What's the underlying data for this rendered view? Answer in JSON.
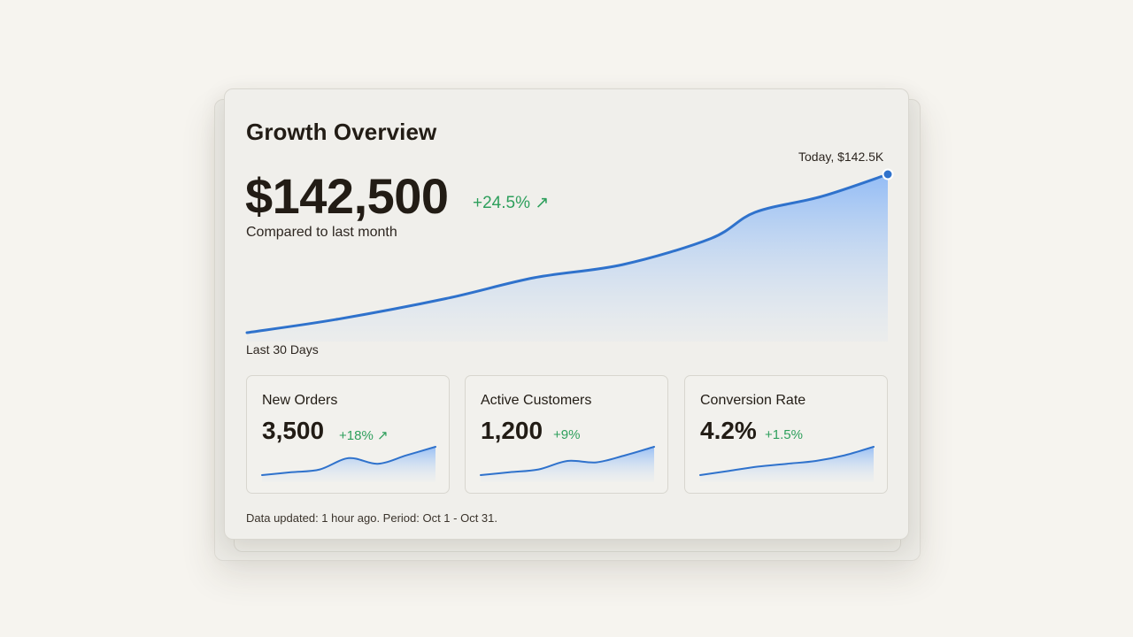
{
  "colors": {
    "background": "#f6f4ef",
    "card": "#f0efeb",
    "line": "#2f72cc",
    "area_fill": "#9fc4f7",
    "positive": "#2e9f5c",
    "text": "#221c15"
  },
  "overview": {
    "title": "Growth Overview",
    "value": "$142,500",
    "delta": "+24.5% ↗",
    "compare_label": "Compared to last month",
    "range_label": "Last 30 Days",
    "today_label": "Today, $142.5K"
  },
  "chart_data": {
    "type": "area",
    "x": [
      1,
      5,
      10,
      14,
      18,
      22,
      24,
      27,
      30
    ],
    "y": [
      82,
      87,
      95,
      103,
      108,
      118,
      128,
      134,
      142.5
    ],
    "xlabel": "",
    "ylabel": "",
    "grid": false,
    "highlight": {
      "label": "Today, $142.5K",
      "index": 8
    }
  },
  "metrics": [
    {
      "title": "New Orders",
      "value": "3,500",
      "delta": "+18% ↗",
      "spark": [
        10,
        12,
        14,
        22,
        18,
        24,
        30
      ]
    },
    {
      "title": "Active Customers",
      "value": "1,200",
      "delta": "+9%",
      "spark": [
        10,
        12,
        14,
        20,
        19,
        24,
        30
      ]
    },
    {
      "title": "Conversion Rate",
      "value": "4.2%",
      "delta": "+1.5%",
      "spark": [
        10,
        13,
        16,
        18,
        20,
        24,
        30
      ]
    }
  ],
  "footer": {
    "note": "Data updated: 1 hour ago. Period: Oct 1 - Oct 31."
  }
}
